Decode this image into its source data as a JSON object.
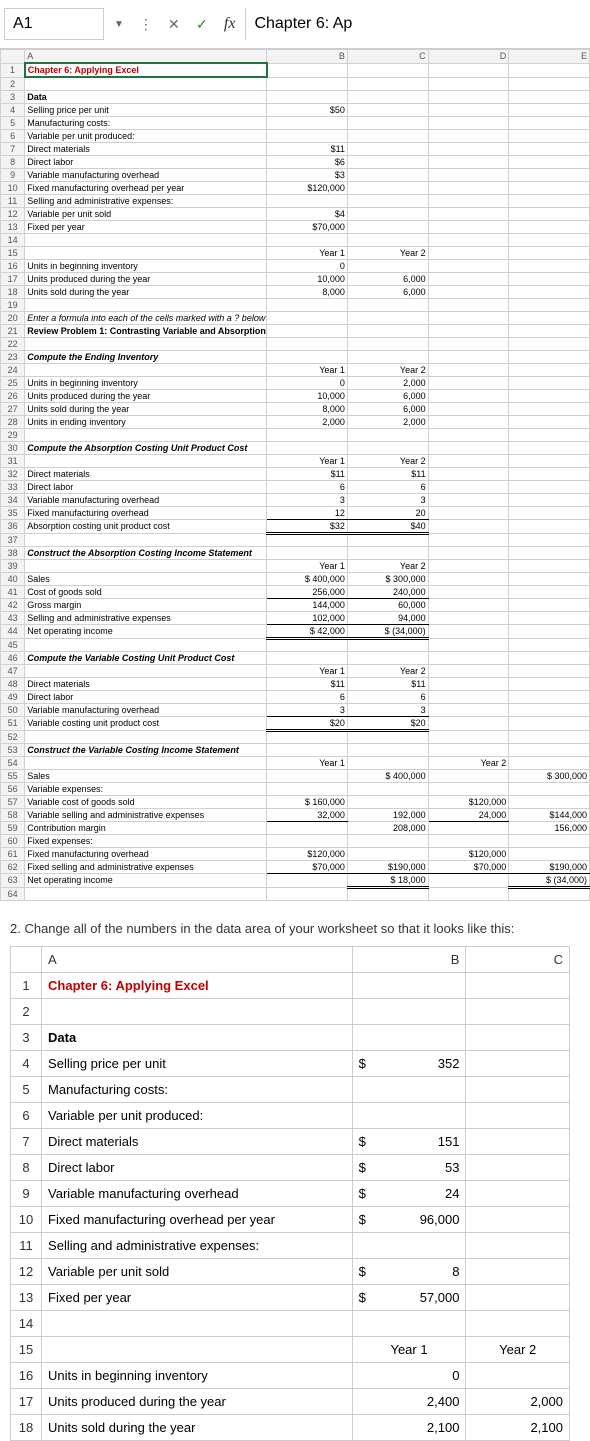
{
  "formula_bar": {
    "cell_ref": "A1",
    "cancel": "✕",
    "accept": "✓",
    "fx": "fx",
    "content": "Chapter 6: Ap"
  },
  "small_sheet": {
    "cols": [
      "A",
      "B",
      "C",
      "D",
      "E"
    ],
    "rows": [
      {
        "r": 1,
        "a": "Chapter 6: Applying Excel",
        "b": "",
        "c": "",
        "d": "",
        "e": "",
        "cls": "red bold"
      },
      {
        "r": 2,
        "a": "",
        "b": "",
        "c": "",
        "d": "",
        "e": ""
      },
      {
        "r": 3,
        "a": "Data",
        "b": "",
        "c": "",
        "d": "",
        "e": "",
        "cls": "bold"
      },
      {
        "r": 4,
        "a": "Selling price per unit",
        "b": "$50",
        "c": "",
        "d": "",
        "e": ""
      },
      {
        "r": 5,
        "a": "Manufacturing costs:",
        "b": "",
        "c": "",
        "d": "",
        "e": ""
      },
      {
        "r": 6,
        "a": "  Variable per unit produced:",
        "b": "",
        "c": "",
        "d": "",
        "e": ""
      },
      {
        "r": 7,
        "a": "    Direct materials",
        "b": "$11",
        "c": "",
        "d": "",
        "e": ""
      },
      {
        "r": 8,
        "a": "    Direct labor",
        "b": "$6",
        "c": "",
        "d": "",
        "e": ""
      },
      {
        "r": 9,
        "a": "    Variable manufacturing overhead",
        "b": "$3",
        "c": "",
        "d": "",
        "e": ""
      },
      {
        "r": 10,
        "a": "  Fixed manufacturing overhead per year",
        "b": "$120,000",
        "c": "",
        "d": "",
        "e": ""
      },
      {
        "r": 11,
        "a": "Selling and administrative expenses:",
        "b": "",
        "c": "",
        "d": "",
        "e": ""
      },
      {
        "r": 12,
        "a": "  Variable per unit sold",
        "b": "$4",
        "c": "",
        "d": "",
        "e": ""
      },
      {
        "r": 13,
        "a": "  Fixed per year",
        "b": "$70,000",
        "c": "",
        "d": "",
        "e": ""
      },
      {
        "r": 14,
        "a": "",
        "b": "",
        "c": "",
        "d": "",
        "e": ""
      },
      {
        "r": 15,
        "a": "",
        "b": "Year 1",
        "c": "Year 2",
        "d": "",
        "e": ""
      },
      {
        "r": 16,
        "a": "Units in beginning inventory",
        "b": "0",
        "c": "",
        "d": "",
        "e": ""
      },
      {
        "r": 17,
        "a": "Units produced during the year",
        "b": "10,000",
        "c": "6,000",
        "d": "",
        "e": ""
      },
      {
        "r": 18,
        "a": "Units sold during the year",
        "b": "8,000",
        "c": "6,000",
        "d": "",
        "e": ""
      },
      {
        "r": 19,
        "a": "",
        "b": "",
        "c": "",
        "d": "",
        "e": ""
      },
      {
        "r": 20,
        "a": "Enter a formula into each of the cells marked with a ? below",
        "b": "",
        "c": "",
        "d": "",
        "e": "",
        "cls": "italic"
      },
      {
        "r": 21,
        "a": "Review Problem 1: Contrasting Variable and Absorption Costing",
        "b": "",
        "c": "",
        "d": "",
        "e": "",
        "cls": "bold"
      },
      {
        "r": 22,
        "a": "",
        "b": "",
        "c": "",
        "d": "",
        "e": ""
      },
      {
        "r": 23,
        "a": "Compute the Ending Inventory",
        "b": "",
        "c": "",
        "d": "",
        "e": "",
        "cls": "bold-italic"
      },
      {
        "r": 24,
        "a": "",
        "b": "Year 1",
        "c": "Year 2",
        "d": "",
        "e": ""
      },
      {
        "r": 25,
        "a": "Units in beginning inventory",
        "b": "0",
        "c": "2,000",
        "d": "",
        "e": ""
      },
      {
        "r": 26,
        "a": "Units produced during the year",
        "b": "10,000",
        "c": "6,000",
        "d": "",
        "e": ""
      },
      {
        "r": 27,
        "a": "Units sold during the year",
        "b": "8,000",
        "c": "6,000",
        "d": "",
        "e": ""
      },
      {
        "r": 28,
        "a": "Units in ending inventory",
        "b": "2,000",
        "c": "2,000",
        "d": "",
        "e": ""
      },
      {
        "r": 29,
        "a": "",
        "b": "",
        "c": "",
        "d": "",
        "e": ""
      },
      {
        "r": 30,
        "a": "Compute the Absorption Costing Unit Product Cost",
        "b": "",
        "c": "",
        "d": "",
        "e": "",
        "cls": "bold-italic"
      },
      {
        "r": 31,
        "a": "",
        "b": "Year 1",
        "c": "Year 2",
        "d": "",
        "e": ""
      },
      {
        "r": 32,
        "a": "Direct materials",
        "b": "$11",
        "c": "$11",
        "d": "",
        "e": ""
      },
      {
        "r": 33,
        "a": "Direct labor",
        "b": "6",
        "c": "6",
        "d": "",
        "e": ""
      },
      {
        "r": 34,
        "a": "Variable manufacturing overhead",
        "b": "3",
        "c": "3",
        "d": "",
        "e": ""
      },
      {
        "r": 35,
        "a": "Fixed manufacturing overhead",
        "b": "12",
        "c": "20",
        "d": "",
        "e": "",
        "cls_b": "ul",
        "cls_c": "ul"
      },
      {
        "r": 36,
        "a": "Absorption costing unit product cost",
        "b": "$32",
        "c": "$40",
        "d": "",
        "e": "",
        "cls_b": "dul",
        "cls_c": "dul"
      },
      {
        "r": 37,
        "a": "",
        "b": "",
        "c": "",
        "d": "",
        "e": ""
      },
      {
        "r": 38,
        "a": "Construct the Absorption Costing Income Statement",
        "b": "",
        "c": "",
        "d": "",
        "e": "",
        "cls": "bold-italic"
      },
      {
        "r": 39,
        "a": "",
        "b": "Year 1",
        "c": "Year 2",
        "d": "",
        "e": ""
      },
      {
        "r": 40,
        "a": "Sales",
        "b": "$ 400,000",
        "c": "$ 300,000",
        "d": "",
        "e": ""
      },
      {
        "r": 41,
        "a": "Cost of goods sold",
        "b": "256,000",
        "c": "240,000",
        "d": "",
        "e": "",
        "cls_b": "ul",
        "cls_c": "ul"
      },
      {
        "r": 42,
        "a": "Gross margin",
        "b": "144,000",
        "c": "60,000",
        "d": "",
        "e": ""
      },
      {
        "r": 43,
        "a": "Selling and administrative expenses",
        "b": "102,000",
        "c": "94,000",
        "d": "",
        "e": "",
        "cls_b": "ul",
        "cls_c": "ul"
      },
      {
        "r": 44,
        "a": "Net operating income",
        "b": "$  42,000",
        "c": "$  (34,000)",
        "d": "",
        "e": "",
        "cls_b": "dul",
        "cls_c": "dul"
      },
      {
        "r": 45,
        "a": "",
        "b": "",
        "c": "",
        "d": "",
        "e": ""
      },
      {
        "r": 46,
        "a": "Compute the Variable Costing Unit Product Cost",
        "b": "",
        "c": "",
        "d": "",
        "e": "",
        "cls": "bold-italic"
      },
      {
        "r": 47,
        "a": "",
        "b": "Year 1",
        "c": "Year 2",
        "d": "",
        "e": ""
      },
      {
        "r": 48,
        "a": "Direct materials",
        "b": "$11",
        "c": "$11",
        "d": "",
        "e": ""
      },
      {
        "r": 49,
        "a": "Direct labor",
        "b": "6",
        "c": "6",
        "d": "",
        "e": ""
      },
      {
        "r": 50,
        "a": "Variable manufacturing overhead",
        "b": "3",
        "c": "3",
        "d": "",
        "e": "",
        "cls_b": "ul",
        "cls_c": "ul"
      },
      {
        "r": 51,
        "a": "Variable costing unit product cost",
        "b": "$20",
        "c": "$20",
        "d": "",
        "e": "",
        "cls_b": "dul",
        "cls_c": "dul"
      },
      {
        "r": 52,
        "a": "",
        "b": "",
        "c": "",
        "d": "",
        "e": ""
      },
      {
        "r": 53,
        "a": "Construct the Variable Costing Income Statement",
        "b": "",
        "c": "",
        "d": "",
        "e": "",
        "cls": "bold-italic"
      },
      {
        "r": 54,
        "a": "",
        "b": "Year 1",
        "c": "",
        "d": "Year 2",
        "e": ""
      },
      {
        "r": 55,
        "a": "Sales",
        "b": "",
        "c": "$ 400,000",
        "d": "",
        "e": "$ 300,000"
      },
      {
        "r": 56,
        "a": "Variable expenses:",
        "b": "",
        "c": "",
        "d": "",
        "e": ""
      },
      {
        "r": 57,
        "a": "  Variable cost of goods sold",
        "b": "$ 160,000",
        "c": "",
        "d": "$120,000",
        "e": ""
      },
      {
        "r": 58,
        "a": "  Variable selling and administrative expenses",
        "b": "32,000",
        "c": "192,000",
        "d": "24,000",
        "e": "$144,000",
        "cls_b": "ul",
        "cls_d": "ul"
      },
      {
        "r": 59,
        "a": "Contribution margin",
        "b": "",
        "c": "208,000",
        "d": "",
        "e": "156,000"
      },
      {
        "r": 60,
        "a": "Fixed expenses:",
        "b": "",
        "c": "",
        "d": "",
        "e": ""
      },
      {
        "r": 61,
        "a": "  Fixed manufacturing overhead",
        "b": "$120,000",
        "c": "",
        "d": "$120,000",
        "e": ""
      },
      {
        "r": 62,
        "a": "  Fixed selling and administrative expenses",
        "b": "$70,000",
        "c": "$190,000",
        "d": "$70,000",
        "e": "$190,000",
        "cls_b": "ul",
        "cls_c": "ul",
        "cls_d": "ul",
        "cls_e": "ul"
      },
      {
        "r": 63,
        "a": "Net operating income",
        "b": "",
        "c": "$  18,000",
        "d": "",
        "e": "$  (34,000)",
        "cls_c": "dul",
        "cls_e": "dul"
      },
      {
        "r": 64,
        "a": "",
        "b": "",
        "c": "",
        "d": "",
        "e": ""
      }
    ]
  },
  "instruction_text": "2. Change all of the numbers in the data area of your worksheet so that it looks like this:",
  "large_sheet": {
    "cols": [
      "A",
      "B",
      "C"
    ],
    "rows": [
      {
        "r": 1,
        "a": "Chapter 6: Applying Excel",
        "b": "",
        "c": "",
        "cls": "red bold"
      },
      {
        "r": 2,
        "a": "",
        "b": "",
        "c": ""
      },
      {
        "r": 3,
        "a": "Data",
        "b": "",
        "c": "",
        "cls": "bold"
      },
      {
        "r": 4,
        "a": "Selling price per unit",
        "b": "$        352",
        "c": ""
      },
      {
        "r": 5,
        "a": "Manufacturing costs:",
        "b": "",
        "c": ""
      },
      {
        "r": 6,
        "a": "  Variable per unit produced:",
        "b": "",
        "c": ""
      },
      {
        "r": 7,
        "a": "    Direct materials",
        "b": "$        151",
        "c": ""
      },
      {
        "r": 8,
        "a": "    Direct labor",
        "b": "$          53",
        "c": ""
      },
      {
        "r": 9,
        "a": "    Variable manufacturing overhead",
        "b": "$          24",
        "c": ""
      },
      {
        "r": 10,
        "a": "  Fixed manufacturing overhead per year",
        "b": "$   96,000",
        "c": ""
      },
      {
        "r": 11,
        "a": "Selling and administrative expenses:",
        "b": "",
        "c": ""
      },
      {
        "r": 12,
        "a": "  Variable per unit sold",
        "b": "$            8",
        "c": ""
      },
      {
        "r": 13,
        "a": "  Fixed per year",
        "b": "$   57,000",
        "c": ""
      },
      {
        "r": 14,
        "a": "",
        "b": "",
        "c": ""
      },
      {
        "r": 15,
        "a": "",
        "b": "Year 1",
        "c": "Year 2"
      },
      {
        "r": 16,
        "a": "Units in beginning inventory",
        "b": "0",
        "c": ""
      },
      {
        "r": 17,
        "a": "Units produced during the year",
        "b": "2,400",
        "c": "2,000"
      },
      {
        "r": 18,
        "a": "Units sold during the year",
        "b": "2,100",
        "c": "2,100"
      }
    ]
  }
}
